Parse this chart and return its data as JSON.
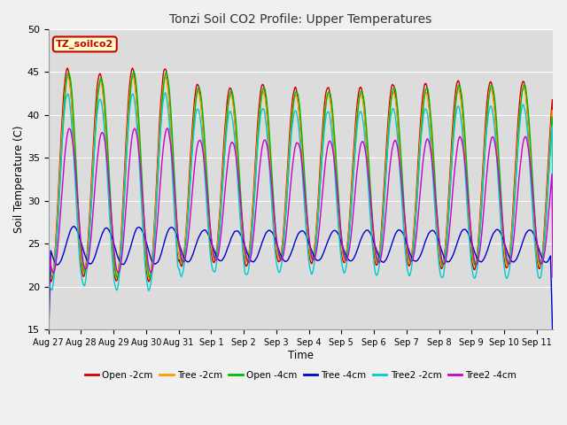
{
  "title": "Tonzi Soil CO2 Profile: Upper Temperatures",
  "xlabel": "Time",
  "ylabel": "Soil Temperature (C)",
  "ylim": [
    15,
    50
  ],
  "yticks": [
    15,
    20,
    25,
    30,
    35,
    40,
    45,
    50
  ],
  "xtick_labels": [
    "Aug 27",
    "Aug 28",
    "Aug 29",
    "Aug 30",
    "Aug 31",
    "Sep 1",
    "Sep 2",
    "Sep 3",
    "Sep 4",
    "Sep 5",
    "Sep 6",
    "Sep 7",
    "Sep 8",
    "Sep 9",
    "Sep 10",
    "Sep 11"
  ],
  "series_order": [
    "Open -2cm",
    "Tree -2cm",
    "Open -4cm",
    "Tree -4cm",
    "Tree2 -2cm",
    "Tree2 -4cm"
  ],
  "series": {
    "Open -2cm": {
      "color": "#cc0000",
      "lw": 1.0
    },
    "Tree -2cm": {
      "color": "#ff9900",
      "lw": 1.0
    },
    "Open -4cm": {
      "color": "#00bb00",
      "lw": 1.0
    },
    "Tree -4cm": {
      "color": "#0000cc",
      "lw": 1.0
    },
    "Tree2 -2cm": {
      "color": "#00cccc",
      "lw": 1.0
    },
    "Tree2 -4cm": {
      "color": "#cc00cc",
      "lw": 1.0
    }
  },
  "legend_box": {
    "text": "TZ_soilco2",
    "facecolor": "#ffffcc",
    "edgecolor": "#cc0000",
    "textcolor": "#cc0000"
  },
  "bg_color": "#dcdcdc",
  "fig_color": "#f0f0f0",
  "n_days": 15.5,
  "peak_day_amps": [
    1.0,
    0.95,
    1.0,
    1.0,
    0.85,
    0.82,
    0.85,
    0.82,
    0.82,
    0.82,
    0.85,
    0.85,
    0.88,
    0.88,
    0.88,
    0.88
  ]
}
